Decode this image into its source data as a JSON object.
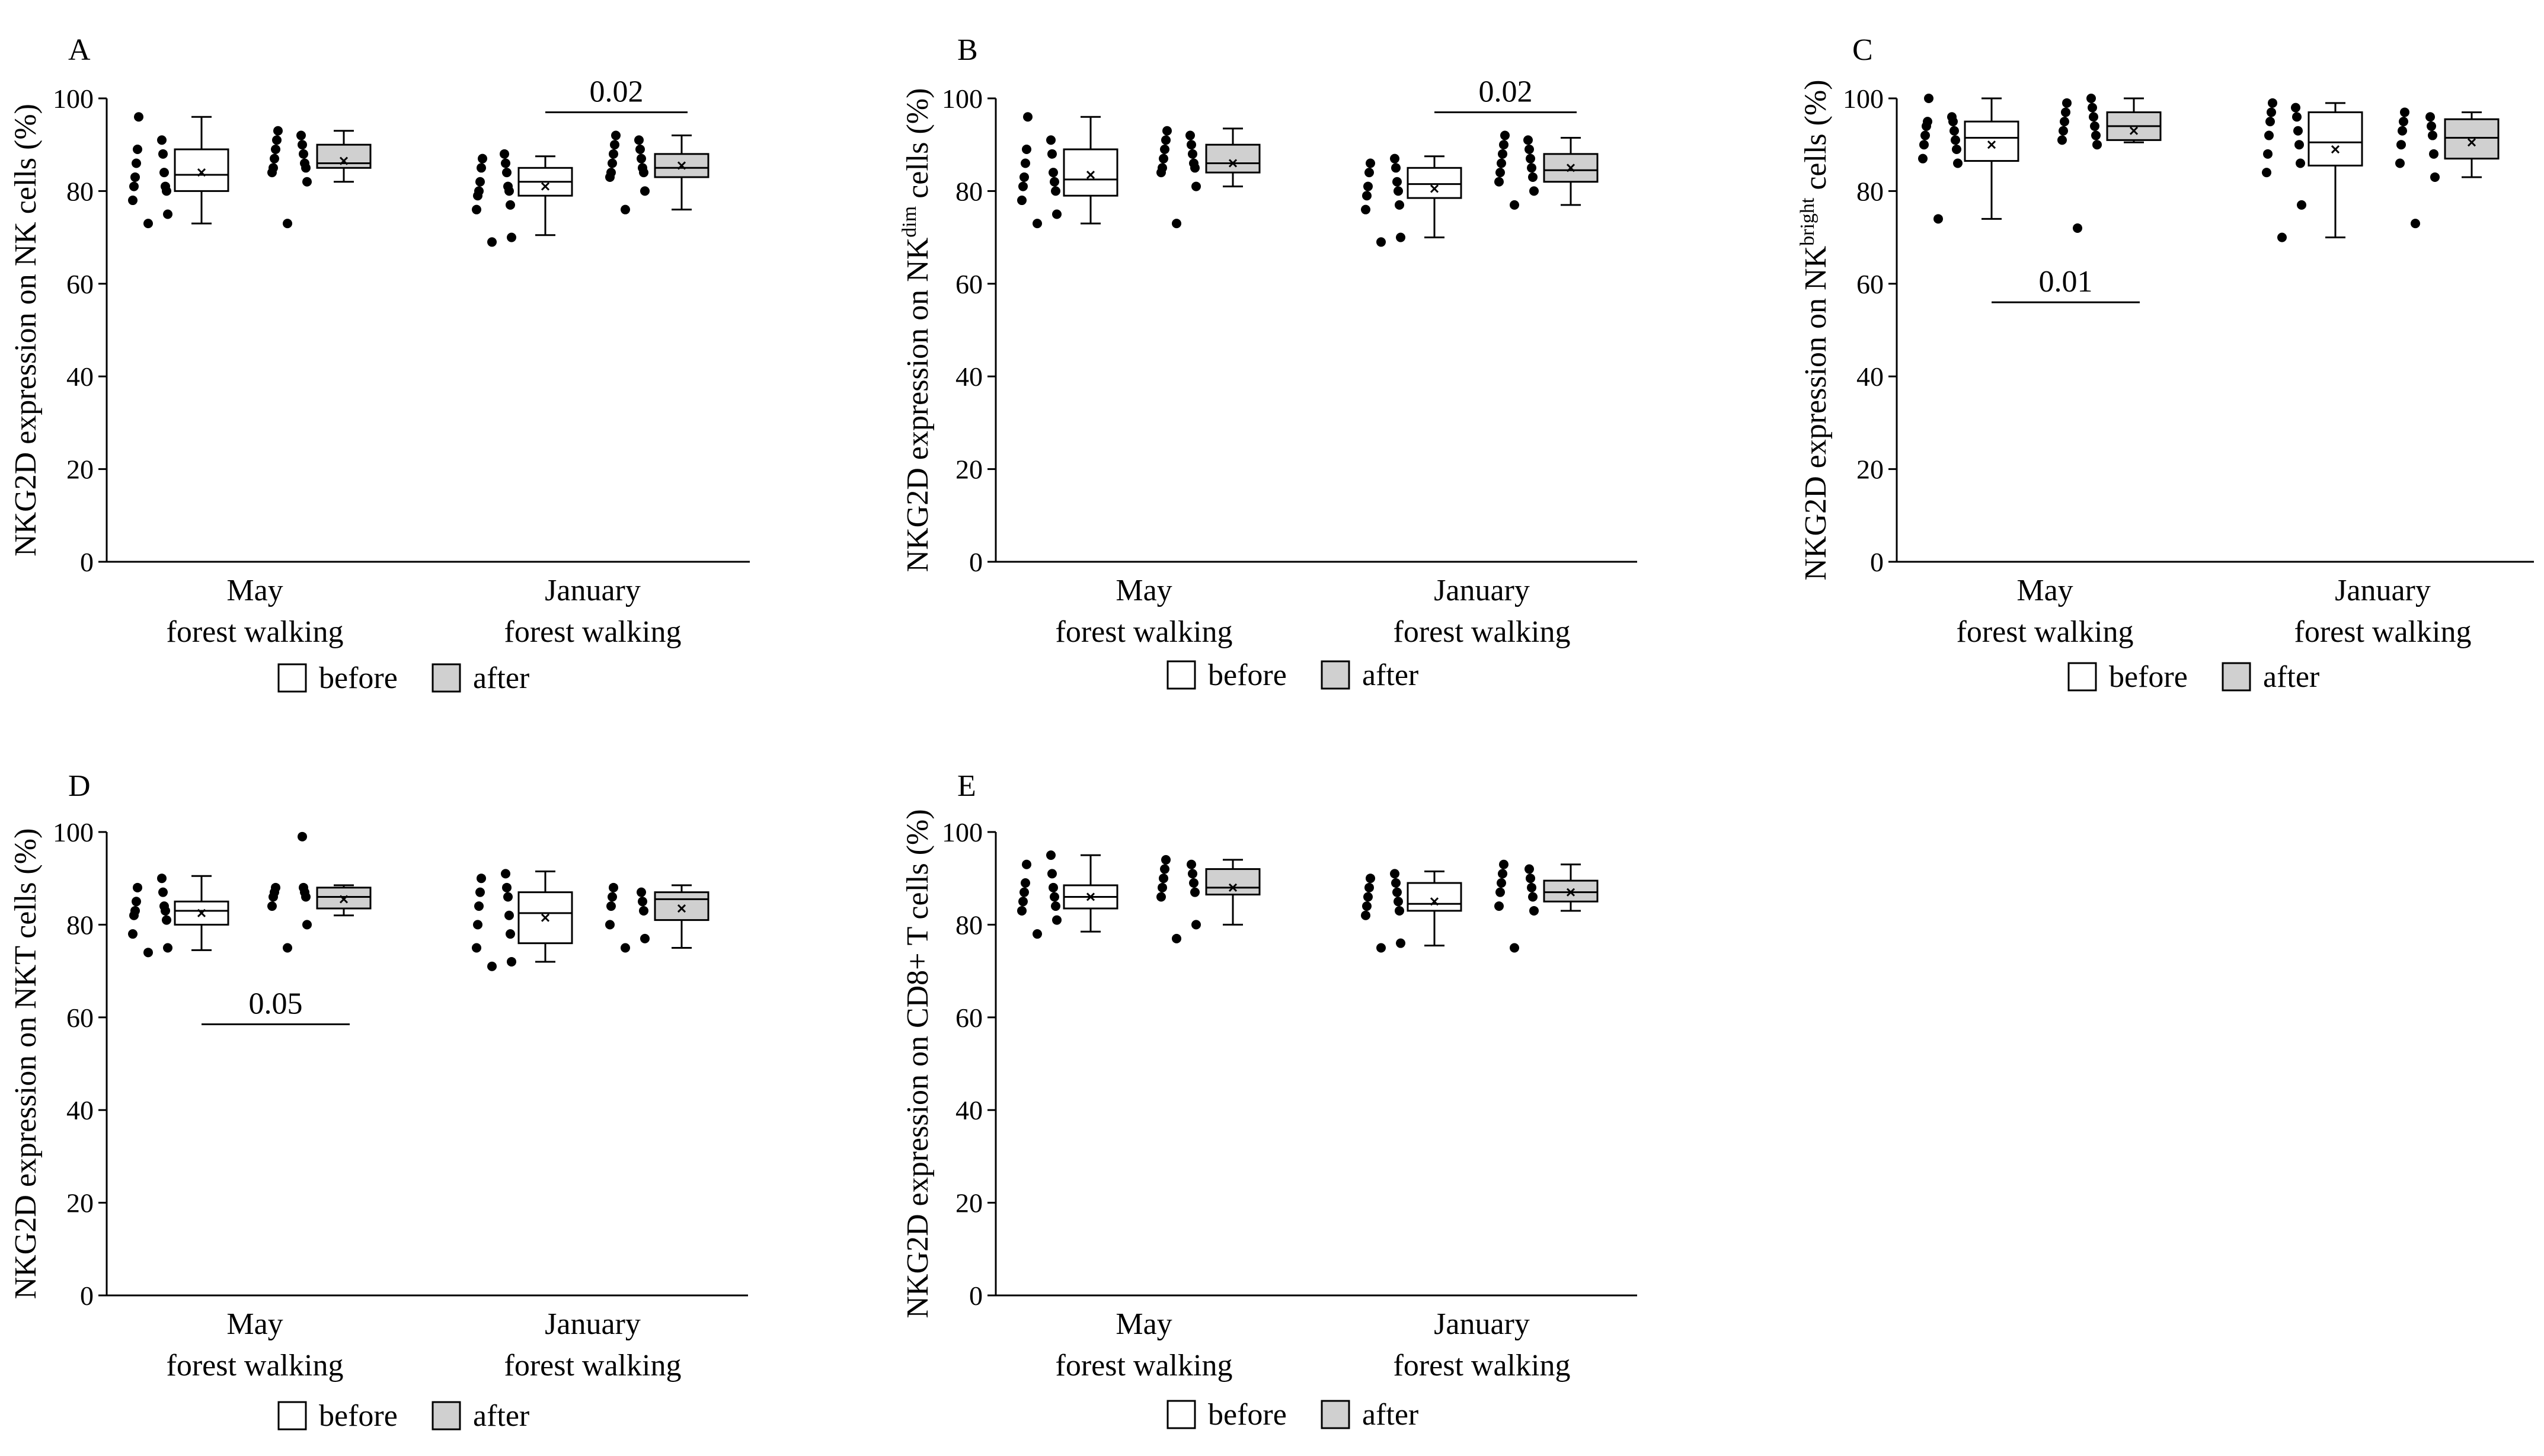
{
  "legend": {
    "before": "before",
    "after": "after"
  },
  "chart_data": [
    {
      "type": "box-dot",
      "panel": "A",
      "ylabel_prefix": "NKG2D expression on NK",
      "ylabel_sup": "",
      "ylabel_suffix": " cells (%)",
      "ylim": [
        0,
        100
      ],
      "yticks": [
        0,
        20,
        40,
        60,
        80,
        100
      ],
      "groups": [
        {
          "line1": "May",
          "line2": "forest walking",
          "before": {
            "min": 73,
            "q1": 80,
            "median": 83.5,
            "q3": 89,
            "max": 96,
            "mean": 84,
            "points": [
              73,
              75,
              78,
              80,
              81,
              81,
              83,
              84,
              86,
              88,
              89,
              91,
              96
            ]
          },
          "after": {
            "min": 82,
            "q1": 85,
            "median": 86,
            "q3": 90,
            "max": 93,
            "mean": 86.5,
            "points": [
              73,
              82,
              84,
              85,
              85,
              86,
              87,
              88,
              89,
              90,
              91,
              92,
              93
            ]
          }
        },
        {
          "line1": "January",
          "line2": "forest walking",
          "before": {
            "min": 70.5,
            "q1": 79,
            "median": 82,
            "q3": 85,
            "max": 87.5,
            "mean": 81,
            "points": [
              69,
              70,
              76,
              77,
              79,
              80,
              80,
              81,
              82,
              84,
              85,
              86,
              87,
              88
            ]
          },
          "after": {
            "min": 76,
            "q1": 83,
            "median": 85,
            "q3": 88,
            "max": 92,
            "mean": 85.5,
            "points": [
              76,
              80,
              83,
              84,
              84,
              85,
              86,
              87,
              88,
              89,
              90,
              91,
              92
            ]
          }
        }
      ],
      "annotations": [
        {
          "text": "0.02",
          "group": 1,
          "y": 97
        }
      ]
    },
    {
      "type": "box-dot",
      "panel": "B",
      "ylabel_prefix": "NKG2D expression on NK",
      "ylabel_sup": "dim",
      "ylabel_suffix": " cells (%)",
      "ylim": [
        0,
        100
      ],
      "yticks": [
        0,
        20,
        40,
        60,
        80,
        100
      ],
      "groups": [
        {
          "line1": "May",
          "line2": "forest walking",
          "before": {
            "min": 73,
            "q1": 79,
            "median": 82.5,
            "q3": 89,
            "max": 96,
            "mean": 83.5,
            "points": [
              73,
              75,
              78,
              80,
              81,
              82,
              83,
              84,
              86,
              88,
              89,
              91,
              96
            ]
          },
          "after": {
            "min": 81,
            "q1": 84,
            "median": 86,
            "q3": 90,
            "max": 93.5,
            "mean": 86,
            "points": [
              73,
              81,
              84,
              85,
              85,
              86,
              87,
              88,
              89,
              90,
              91,
              92,
              93
            ]
          }
        },
        {
          "line1": "January",
          "line2": "forest walking",
          "before": {
            "min": 70,
            "q1": 78.5,
            "median": 81.5,
            "q3": 85,
            "max": 87.5,
            "mean": 80.5,
            "points": [
              69,
              70,
              76,
              77,
              79,
              80,
              81,
              82,
              84,
              85,
              86,
              87
            ]
          },
          "after": {
            "min": 77,
            "q1": 82,
            "median": 84.5,
            "q3": 88,
            "max": 91.5,
            "mean": 85,
            "points": [
              77,
              80,
              82,
              83,
              84,
              85,
              86,
              87,
              88,
              89,
              90,
              91,
              92
            ]
          }
        }
      ],
      "annotations": [
        {
          "text": "0.02",
          "group": 1,
          "y": 97
        }
      ]
    },
    {
      "type": "box-dot",
      "panel": "C",
      "ylabel_prefix": "NKG2D expression on NK",
      "ylabel_sup": "bright",
      "ylabel_suffix": " cells (%)",
      "ylim": [
        0,
        100
      ],
      "yticks": [
        0,
        20,
        40,
        60,
        80,
        100
      ],
      "groups": [
        {
          "line1": "May",
          "line2": "forest walking",
          "before": {
            "min": 74,
            "q1": 86.5,
            "median": 91.5,
            "q3": 95,
            "max": 100,
            "mean": 90,
            "points": [
              74,
              86,
              87,
              89,
              90,
              91,
              92,
              93,
              94,
              95,
              95,
              96,
              100
            ]
          },
          "after": {
            "min": 90.5,
            "q1": 91,
            "median": 94,
            "q3": 97,
            "max": 100,
            "mean": 93,
            "points": [
              72,
              90,
              91,
              92,
              93,
              94,
              95,
              96,
              97,
              98,
              99,
              100
            ]
          }
        },
        {
          "line1": "January",
          "line2": "forest walking",
          "before": {
            "min": 70,
            "q1": 85.5,
            "median": 90.5,
            "q3": 97,
            "max": 99,
            "mean": 89,
            "points": [
              70,
              77,
              84,
              86,
              88,
              90,
              92,
              93,
              95,
              96,
              97,
              98,
              99
            ]
          },
          "after": {
            "min": 83,
            "q1": 87,
            "median": 91.5,
            "q3": 95.5,
            "max": 97,
            "mean": 90.5,
            "points": [
              73,
              83,
              86,
              88,
              90,
              92,
              93,
              94,
              95,
              96,
              97
            ]
          }
        }
      ],
      "annotations": [
        {
          "text": "0.01",
          "group": 0,
          "y": 56
        }
      ]
    },
    {
      "type": "box-dot",
      "panel": "D",
      "ylabel_prefix": "NKG2D expression on NKT",
      "ylabel_sup": "",
      "ylabel_suffix": " cells (%)",
      "ylim": [
        0,
        100
      ],
      "yticks": [
        0,
        20,
        40,
        60,
        80,
        100
      ],
      "groups": [
        {
          "line1": "May",
          "line2": "forest walking",
          "before": {
            "min": 74.5,
            "q1": 80,
            "median": 83,
            "q3": 85,
            "max": 90.5,
            "mean": 82.5,
            "points": [
              74,
              75,
              78,
              81,
              82,
              83,
              83,
              84,
              85,
              87,
              88,
              90
            ]
          },
          "after": {
            "min": 82,
            "q1": 83.5,
            "median": 86,
            "q3": 88,
            "max": 88.5,
            "mean": 85.5,
            "points": [
              75,
              80,
              84,
              86,
              86,
              87,
              87,
              88,
              88,
              99
            ]
          }
        },
        {
          "line1": "January",
          "line2": "forest walking",
          "before": {
            "min": 72,
            "q1": 76,
            "median": 82.5,
            "q3": 87,
            "max": 91.5,
            "mean": 81.5,
            "points": [
              71,
              72,
              75,
              78,
              80,
              82,
              84,
              86,
              87,
              88,
              90,
              91
            ]
          },
          "after": {
            "min": 75,
            "q1": 81,
            "median": 85.5,
            "q3": 87,
            "max": 88.5,
            "mean": 83.5,
            "points": [
              75,
              77,
              80,
              83,
              84,
              85,
              86,
              87,
              88
            ]
          }
        }
      ],
      "annotations": [
        {
          "text": "0.05",
          "group": 0,
          "y": 58.5
        }
      ]
    },
    {
      "type": "box-dot",
      "panel": "E",
      "ylabel_prefix": "NKG2D expression on CD8+ T",
      "ylabel_sup": "",
      "ylabel_suffix": " cells (%)",
      "ylim": [
        0,
        100
      ],
      "yticks": [
        0,
        20,
        40,
        60,
        80,
        100
      ],
      "groups": [
        {
          "line1": "May",
          "line2": "forest walking",
          "before": {
            "min": 78.5,
            "q1": 83.5,
            "median": 86,
            "q3": 88.5,
            "max": 95,
            "mean": 86,
            "points": [
              78,
              81,
              83,
              84,
              85,
              86,
              87,
              88,
              89,
              91,
              93,
              95
            ]
          },
          "after": {
            "min": 80,
            "q1": 86.5,
            "median": 88,
            "q3": 92,
            "max": 94,
            "mean": 88,
            "points": [
              77,
              80,
              86,
              87,
              88,
              89,
              90,
              91,
              92,
              93,
              94
            ]
          }
        },
        {
          "line1": "January",
          "line2": "forest walking",
          "before": {
            "min": 75.5,
            "q1": 83,
            "median": 84.5,
            "q3": 89,
            "max": 91.5,
            "mean": 85,
            "points": [
              75,
              76,
              82,
              83,
              84,
              85,
              86,
              87,
              88,
              89,
              90,
              91
            ]
          },
          "after": {
            "min": 83,
            "q1": 85,
            "median": 87,
            "q3": 89.5,
            "max": 93,
            "mean": 87,
            "points": [
              75,
              83,
              84,
              86,
              87,
              88,
              89,
              90,
              91,
              92,
              93
            ]
          }
        }
      ],
      "annotations": []
    }
  ]
}
